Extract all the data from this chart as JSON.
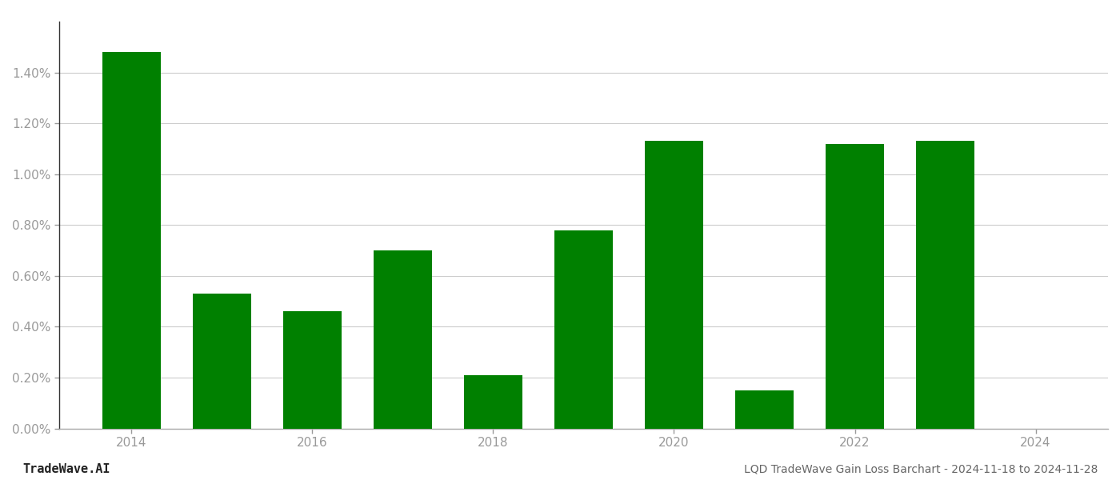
{
  "years": [
    2014,
    2015,
    2016,
    2017,
    2018,
    2019,
    2020,
    2021,
    2022,
    2023
  ],
  "values": [
    0.0148,
    0.0053,
    0.0046,
    0.007,
    0.0021,
    0.0078,
    0.0113,
    0.0015,
    0.0112,
    0.0113
  ],
  "bar_color": "#008000",
  "background_color": "#ffffff",
  "grid_color": "#cccccc",
  "footer_left": "TradeWave.AI",
  "footer_right": "LQD TradeWave Gain Loss Barchart - 2024-11-18 to 2024-11-28",
  "ylabel_color": "#999999",
  "xlabel_color": "#999999",
  "ylim_min": 0.0,
  "ylim_max": 0.016,
  "ytick_values": [
    0.0,
    0.002,
    0.004,
    0.006,
    0.008,
    0.01,
    0.012,
    0.014
  ],
  "xtick_values": [
    2014,
    2016,
    2018,
    2020,
    2022,
    2024
  ],
  "bar_width": 0.65,
  "xlim_min": 2013.2,
  "xlim_max": 2024.8
}
